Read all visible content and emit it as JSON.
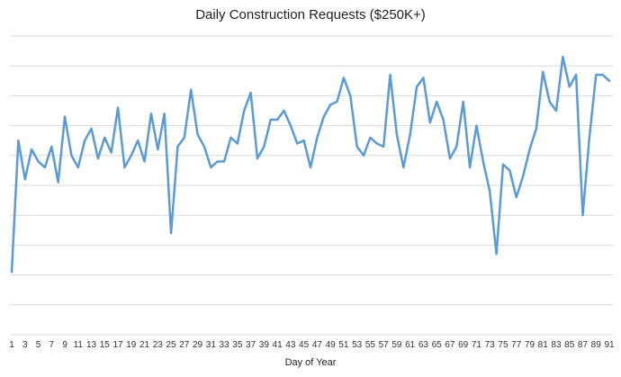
{
  "chart_data": {
    "type": "line",
    "title": "Daily Construction Requests ($250K+)",
    "xlabel": "Day of Year",
    "ylabel": "",
    "x": [
      1,
      2,
      3,
      4,
      5,
      6,
      7,
      8,
      9,
      10,
      11,
      12,
      13,
      14,
      15,
      16,
      17,
      18,
      19,
      20,
      21,
      22,
      23,
      24,
      25,
      26,
      27,
      28,
      29,
      30,
      31,
      32,
      33,
      34,
      35,
      36,
      37,
      38,
      39,
      40,
      41,
      42,
      43,
      44,
      45,
      46,
      47,
      48,
      49,
      50,
      51,
      52,
      53,
      54,
      55,
      56,
      57,
      58,
      59,
      60,
      61,
      62,
      63,
      64,
      65,
      66,
      67,
      68,
      69,
      70,
      71,
      72,
      73,
      74,
      75,
      76,
      77,
      78,
      79,
      80,
      81,
      82,
      83,
      84,
      85,
      86,
      87,
      88,
      89,
      90,
      91
    ],
    "series": [
      {
        "values": [
          2.1,
          6.5,
          5.2,
          6.2,
          5.8,
          5.6,
          6.3,
          5.1,
          7.3,
          6.0,
          5.6,
          6.5,
          6.9,
          5.9,
          6.6,
          6.1,
          7.6,
          5.6,
          6.0,
          6.5,
          5.8,
          7.4,
          6.2,
          7.4,
          3.4,
          6.3,
          6.6,
          8.2,
          6.7,
          6.3,
          5.6,
          5.8,
          5.8,
          6.6,
          6.4,
          7.5,
          8.1,
          5.9,
          6.3,
          7.2,
          7.2,
          7.5,
          7.0,
          6.4,
          6.5,
          5.6,
          6.6,
          7.3,
          7.7,
          7.8,
          8.6,
          8.0,
          6.3,
          6.0,
          6.6,
          6.4,
          6.3,
          8.7,
          6.7,
          5.6,
          6.7,
          8.3,
          8.6,
          7.1,
          7.8,
          7.2,
          5.9,
          6.3,
          7.8,
          5.6,
          7.0,
          5.8,
          4.8,
          2.7,
          5.7,
          5.5,
          4.6,
          5.3,
          6.2,
          6.9,
          8.8,
          7.8,
          7.5,
          9.3,
          8.3,
          8.7,
          4.0,
          6.6,
          8.7,
          8.7,
          8.5
        ]
      }
    ],
    "ylim": [
      0,
      10
    ],
    "y_grid_lines": 9,
    "x_tick_labels": [
      "1",
      "3",
      "5",
      "7",
      "9",
      "11",
      "13",
      "15",
      "17",
      "19",
      "21",
      "23",
      "25",
      "27",
      "29",
      "31",
      "33",
      "35",
      "37",
      "39",
      "41",
      "43",
      "45",
      "47",
      "49",
      "51",
      "53",
      "55",
      "57",
      "59",
      "61",
      "63",
      "65",
      "67",
      "69",
      "71",
      "73",
      "75",
      "77",
      "79",
      "81",
      "83",
      "85",
      "87",
      "89",
      "91"
    ],
    "grid": true,
    "colors": {
      "line": "#5b9bd5",
      "grid": "#d9d9d9"
    }
  }
}
